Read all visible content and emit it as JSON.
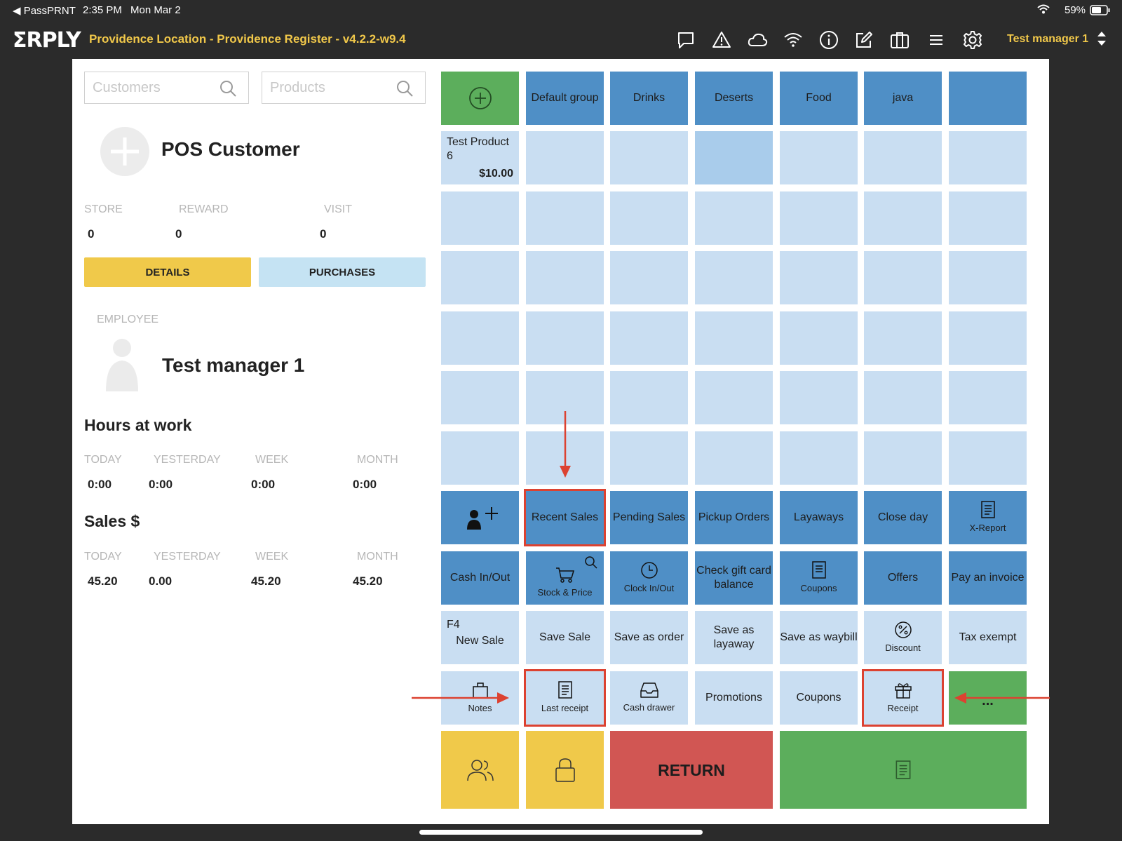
{
  "status": {
    "app": "◀ PassPRNT",
    "time": "2:35 PM",
    "date": "Mon Mar 2",
    "battery": "59%"
  },
  "appbar": {
    "logo": "ΣRPLY",
    "title": "Providence Location - Providence Register - v4.2.2-w9.4",
    "user": "Test manager 1",
    "icons": [
      "chat-icon",
      "warning-icon",
      "cloud-icon",
      "wifi-icon",
      "info-icon",
      "edit-icon",
      "gift-card-icon",
      "menu-icon",
      "settings-icon"
    ]
  },
  "search": {
    "customers_placeholder": "Customers",
    "products_placeholder": "Products"
  },
  "customer": {
    "name": "POS Customer",
    "stats": [
      {
        "label": "STORE",
        "value": "0"
      },
      {
        "label": "REWARD",
        "value": "0"
      },
      {
        "label": "VISIT",
        "value": "0"
      }
    ],
    "details_label": "DETAILS",
    "purchases_label": "PURCHASES"
  },
  "employee": {
    "label": "EMPLOYEE",
    "name": "Test manager 1"
  },
  "hours": {
    "title": "Hours at work",
    "items": [
      {
        "label": "TODAY",
        "value": "0:00"
      },
      {
        "label": "YESTERDAY",
        "value": "0:00"
      },
      {
        "label": "WEEK",
        "value": "0:00"
      },
      {
        "label": "MONTH",
        "value": "0:00"
      }
    ]
  },
  "sales": {
    "title": "Sales $",
    "items": [
      {
        "label": "TODAY",
        "value": "45.20"
      },
      {
        "label": "YESTERDAY",
        "value": "0.00"
      },
      {
        "label": "WEEK",
        "value": "45.20"
      },
      {
        "label": "MONTH",
        "value": "45.20"
      }
    ]
  },
  "groups": [
    "Default group",
    "Drinks",
    "Deserts",
    "Food",
    "java",
    ""
  ],
  "product": {
    "name": "Test Product 6",
    "price": "$10.00"
  },
  "functions": {
    "row1": [
      "Recent Sales",
      "Pending Sales",
      "Pickup Orders",
      "Layaways",
      "Close day",
      "X-Report"
    ],
    "row2": [
      "Cash In/Out",
      "Stock & Price",
      "Clock In/Out",
      "Check gift card balance",
      "Coupons",
      "Offers",
      "Pay an invoice"
    ],
    "row3": {
      "key": "F4",
      "new_sale": "New Sale",
      "items": [
        "Save Sale",
        "Save as order",
        "Save as layaway",
        "Save as waybill",
        "Discount",
        "Tax exempt"
      ]
    },
    "row4": [
      "Notes",
      "Last receipt",
      "Cash drawer",
      "Promotions",
      "Coupons",
      "Receipt",
      "..."
    ],
    "return_label": "RETURN"
  },
  "colors": {
    "blue": "#4f8fc6",
    "light": "#c9def2",
    "green": "#5cae5c",
    "yellow": "#f0c94a",
    "red": "#d15653",
    "highlight": "#dc4231",
    "title": "#f1c84a"
  }
}
